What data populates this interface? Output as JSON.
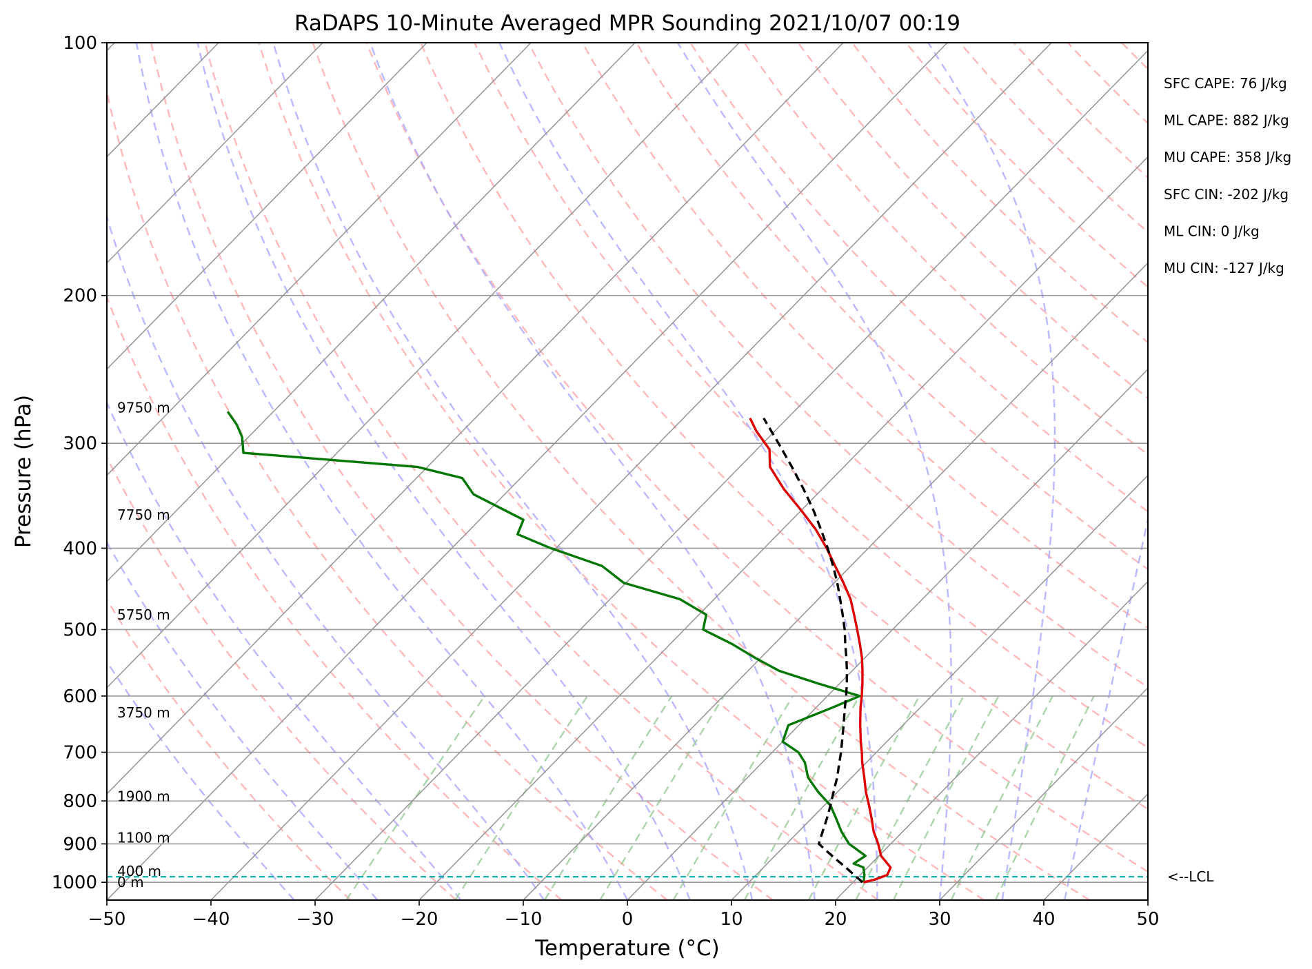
{
  "chart_data": {
    "type": "line",
    "title": "RaDAPS 10-Minute Averaged MPR Sounding 2021/10/07 00:19",
    "xlabel": "Temperature (°C)",
    "ylabel": "Pressure (hPa)",
    "xlim": [
      -50,
      50
    ],
    "ylim": [
      1050,
      100
    ],
    "y_scale": "log",
    "grid": true,
    "x_ticks": [
      -50,
      -40,
      -30,
      -20,
      -10,
      0,
      10,
      20,
      30,
      40,
      50
    ],
    "y_ticks": [
      100,
      200,
      300,
      400,
      500,
      600,
      700,
      800,
      900,
      1000
    ],
    "x_tick_labels": [
      "−50",
      "−40",
      "−30",
      "−20",
      "−10",
      "0",
      "10",
      "20",
      "30",
      "40",
      "50"
    ],
    "y_tick_labels": [
      "100",
      "200",
      "300",
      "400",
      "500",
      "600",
      "700",
      "800",
      "900",
      "1000"
    ],
    "colors": {
      "temperature": "#dd0000",
      "dewpoint": "#007700",
      "parcel": "#000000",
      "dry_adiabat": "#ffaaaa",
      "moist_adiabat": "#aaaaff",
      "mixing_ratio": "#99cc99",
      "lcl": "#00aaaa",
      "isotherm": "#999999"
    },
    "series": [
      {
        "key": "temperature",
        "p": [
          1000,
          993,
          980,
          960,
          930,
          900,
          870,
          840,
          810,
          780,
          750,
          720,
          700,
          680,
          650,
          620,
          600,
          580,
          560,
          540,
          520,
          500,
          480,
          460,
          440,
          420,
          400,
          380,
          360,
          340,
          320,
          305,
          290,
          280
        ],
        "values": [
          21.0,
          21.8,
          22.6,
          22.2,
          20.2,
          18.8,
          17.2,
          15.8,
          14.3,
          12.7,
          11.2,
          9.6,
          8.6,
          7.5,
          5.9,
          4.3,
          3.3,
          2.2,
          1.0,
          -0.3,
          -1.8,
          -3.4,
          -5.1,
          -6.9,
          -9.1,
          -11.5,
          -14.0,
          -16.8,
          -20.1,
          -23.7,
          -27.1,
          -28.8,
          -31.8,
          -33.6
        ]
      },
      {
        "key": "dewpoint",
        "p": [
          1000,
          993,
          980,
          960,
          950,
          930,
          900,
          870,
          840,
          810,
          780,
          750,
          720,
          700,
          680,
          650,
          620,
          600,
          580,
          560,
          540,
          520,
          500,
          480,
          460,
          440,
          420,
          400,
          385,
          370,
          345,
          330,
          320,
          308,
          295,
          285,
          275
        ],
        "values": [
          21.0,
          20.8,
          20.4,
          19.6,
          18.3,
          18.7,
          16.0,
          14.1,
          12.4,
          10.6,
          8.1,
          5.8,
          4.1,
          2.5,
          0.0,
          -1.0,
          1.5,
          3.1,
          -2.0,
          -7.0,
          -10.6,
          -14.1,
          -18.2,
          -19.3,
          -23.3,
          -30.2,
          -33.9,
          -40.5,
          -45.0,
          -45.8,
          -53.0,
          -55.6,
          -61.0,
          -79.0,
          -80.6,
          -82.3,
          -84.4
        ]
      },
      {
        "key": "parcel",
        "p": [
          1000,
          993,
          980,
          960,
          940,
          920,
          900,
          870,
          840,
          810,
          780,
          750,
          720,
          700,
          680,
          650,
          620,
          600,
          580,
          560,
          540,
          520,
          500,
          480,
          460,
          440,
          420,
          400,
          380,
          360,
          340,
          320,
          300,
          280
        ],
        "values": [
          20.9,
          20.4,
          19.4,
          17.9,
          16.3,
          14.7,
          13.1,
          12.3,
          11.5,
          10.6,
          9.6,
          8.6,
          7.4,
          6.6,
          5.7,
          4.3,
          2.8,
          1.8,
          0.7,
          -0.5,
          -1.8,
          -3.2,
          -4.6,
          -6.2,
          -7.9,
          -9.7,
          -11.7,
          -13.9,
          -16.3,
          -18.9,
          -21.8,
          -25.0,
          -28.5,
          -32.3
        ]
      }
    ],
    "height_labels": [
      {
        "label": "0 m",
        "p": 1000
      },
      {
        "label": "400 m",
        "p": 970
      },
      {
        "label": "1100 m",
        "p": 885
      },
      {
        "label": "1900 m",
        "p": 790
      },
      {
        "label": "3750 m",
        "p": 628
      },
      {
        "label": "5750 m",
        "p": 480
      },
      {
        "label": "7750 m",
        "p": 365
      },
      {
        "label": "9750 m",
        "p": 272
      }
    ],
    "lcl": {
      "p": 985,
      "label": "<--LCL"
    },
    "indices": [
      "SFC CAPE: 76 J/kg",
      "ML CAPE: 882 J/kg",
      "MU CAPE: 358 J/kg",
      "SFC CIN: -202 J/kg",
      "ML CIN: 0 J/kg",
      "MU CIN: -127 J/kg"
    ]
  }
}
